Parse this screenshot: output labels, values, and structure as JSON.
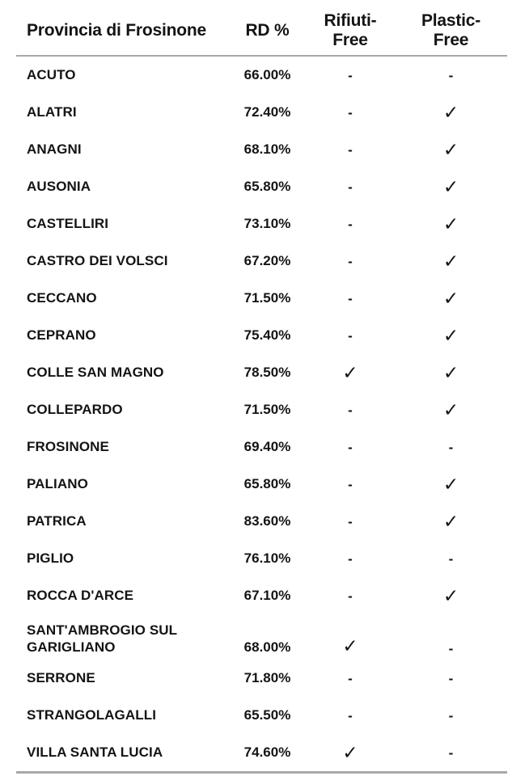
{
  "chart_data": {
    "type": "table",
    "title": "Provincia di Frosinone",
    "columns": [
      "Provincia di Frosinone",
      "RD %",
      "Rifiuti-\nFree",
      "Plastic-\nFree"
    ],
    "check_glyph": "✓",
    "dash_glyph": "-",
    "rows": [
      {
        "name": "ACUTO",
        "rd_percent": "66.00%",
        "rifiuti_free": "-",
        "plastic_free": "-"
      },
      {
        "name": "ALATRI",
        "rd_percent": "72.40%",
        "rifiuti_free": "-",
        "plastic_free": "✓"
      },
      {
        "name": "ANAGNI",
        "rd_percent": "68.10%",
        "rifiuti_free": "-",
        "plastic_free": "✓"
      },
      {
        "name": "AUSONIA",
        "rd_percent": "65.80%",
        "rifiuti_free": "-",
        "plastic_free": "✓"
      },
      {
        "name": "CASTELLIRI",
        "rd_percent": "73.10%",
        "rifiuti_free": "-",
        "plastic_free": "✓"
      },
      {
        "name": "CASTRO DEI VOLSCI",
        "rd_percent": "67.20%",
        "rifiuti_free": "-",
        "plastic_free": "✓"
      },
      {
        "name": "CECCANO",
        "rd_percent": "71.50%",
        "rifiuti_free": "-",
        "plastic_free": "✓"
      },
      {
        "name": "CEPRANO",
        "rd_percent": "75.40%",
        "rifiuti_free": "-",
        "plastic_free": "✓"
      },
      {
        "name": "COLLE SAN MAGNO",
        "rd_percent": "78.50%",
        "rifiuti_free": "✓",
        "plastic_free": "✓"
      },
      {
        "name": "COLLEPARDO",
        "rd_percent": "71.50%",
        "rifiuti_free": "-",
        "plastic_free": "✓"
      },
      {
        "name": "FROSINONE",
        "rd_percent": "69.40%",
        "rifiuti_free": "-",
        "plastic_free": "-"
      },
      {
        "name": "PALIANO",
        "rd_percent": "65.80%",
        "rifiuti_free": "-",
        "plastic_free": "✓"
      },
      {
        "name": "PATRICA",
        "rd_percent": "83.60%",
        "rifiuti_free": "-",
        "plastic_free": "✓"
      },
      {
        "name": "PIGLIO",
        "rd_percent": "76.10%",
        "rifiuti_free": "-",
        "plastic_free": "-"
      },
      {
        "name": "ROCCA D'ARCE",
        "rd_percent": "67.10%",
        "rifiuti_free": "-",
        "plastic_free": "✓"
      },
      {
        "name": "SANT'AMBROGIO SUL GARIGLIANO",
        "rd_percent": "68.00%",
        "rifiuti_free": "✓",
        "plastic_free": "-"
      },
      {
        "name": "SERRONE",
        "rd_percent": "71.80%",
        "rifiuti_free": "-",
        "plastic_free": "-"
      },
      {
        "name": "STRANGOLAGALLI",
        "rd_percent": "65.50%",
        "rifiuti_free": "-",
        "plastic_free": "-"
      },
      {
        "name": "VILLA SANTA LUCIA",
        "rd_percent": "74.60%",
        "rifiuti_free": "✓",
        "plastic_free": "-"
      }
    ]
  },
  "colors": {
    "text": "#141414",
    "rule": "#a8a8a8",
    "background": "#ffffff"
  }
}
